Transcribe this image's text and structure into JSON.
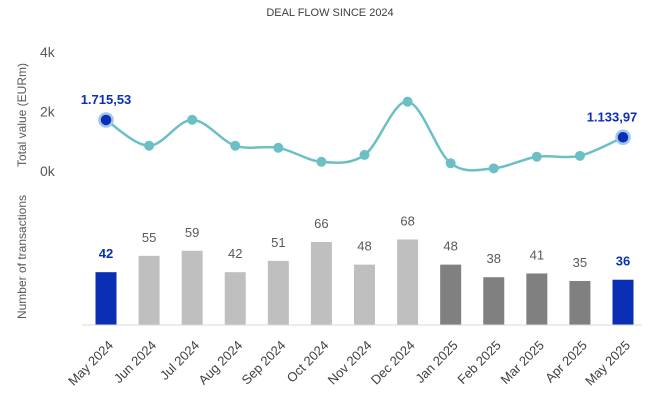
{
  "chart_data": {
    "title": "DEAL FLOW SINCE 2024",
    "categories": [
      "May 2024",
      "Jun 2024",
      "Jul 2024",
      "Aug 2024",
      "Sep 2024",
      "Oct 2024",
      "Nov 2024",
      "Dec 2024",
      "Jan 2025",
      "Feb 2025",
      "Mar 2025",
      "Apr 2025",
      "May 2025"
    ],
    "panels": [
      {
        "type": "line",
        "ylabel": "Total value (EURm)",
        "ylim": [
          0,
          4000
        ],
        "yticks": [
          0,
          2000,
          4000
        ],
        "ytick_labels": [
          "0k",
          "2k",
          "4k"
        ],
        "series": [
          {
            "values": [
              1715.53,
              850,
              1720,
              850,
              780,
              310,
              540,
              2330,
              260,
              90,
              480,
              510,
              1133.97
            ],
            "color": "#6cc0c5"
          }
        ],
        "highlight_points": [
          {
            "index": 0,
            "label": "1.715,53",
            "color": "#0a2fb5"
          },
          {
            "index": 12,
            "label": "1.133,97",
            "color": "#0a2fb5"
          }
        ]
      },
      {
        "type": "bar",
        "ylabel": "Number of transactions",
        "values": [
          42,
          55,
          59,
          42,
          51,
          66,
          48,
          68,
          48,
          38,
          41,
          35,
          36
        ],
        "data_labels": [
          "42",
          "55",
          "59",
          "42",
          "51",
          "66",
          "48",
          "68",
          "48",
          "38",
          "41",
          "35",
          "36"
        ],
        "bar_colors": [
          "#0a2fb5",
          "#bfbfbf",
          "#bfbfbf",
          "#bfbfbf",
          "#bfbfbf",
          "#bfbfbf",
          "#bfbfbf",
          "#bfbfbf",
          "#808080",
          "#808080",
          "#808080",
          "#808080",
          "#0a2fb5"
        ],
        "label_colors": [
          "#0a2fb5",
          "#595959",
          "#595959",
          "#595959",
          "#595959",
          "#595959",
          "#595959",
          "#595959",
          "#595959",
          "#595959",
          "#595959",
          "#595959",
          "#0a2fb5"
        ],
        "bold_labels": [
          0,
          12
        ]
      }
    ]
  }
}
